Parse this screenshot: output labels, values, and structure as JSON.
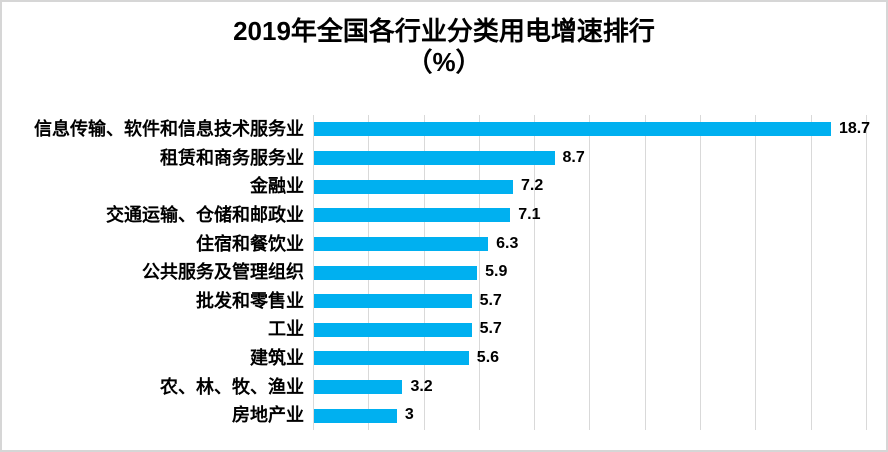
{
  "title": {
    "line1": "2019年全国各行业分类用电增速排行",
    "line2": "（%）"
  },
  "chart_data": {
    "type": "bar",
    "orientation": "horizontal",
    "title": "2019年全国各行业分类用电增速排行（%）",
    "xlabel": "",
    "ylabel": "",
    "categories": [
      "信息传输、软件和信息技术服务业",
      "租赁和商务服务业",
      "金融业",
      "交通运输、仓储和邮政业",
      "住宿和餐饮业",
      "公共服务及管理组织",
      "批发和零售业",
      "工业",
      "建筑业",
      "农、林、牧、渔业",
      "房地产业"
    ],
    "values": [
      18.7,
      8.7,
      7.2,
      7.1,
      6.3,
      5.9,
      5.7,
      5.7,
      5.6,
      3.2,
      3
    ],
    "value_labels": [
      "18.7",
      "8.7",
      "7.2",
      "7.1",
      "6.3",
      "5.9",
      "5.7",
      "5.7",
      "5.6",
      "3.2",
      "3"
    ],
    "xlim": [
      0,
      20.8
    ],
    "gridline_step": 2,
    "gridline_max": 20,
    "grid": true,
    "legend": "none",
    "colors": {
      "bar": "#00B0F0",
      "gridline": "#D9D9D9",
      "text": "#000000",
      "background": "#FFFFFF",
      "frame_border": "#D6D6D6"
    }
  }
}
